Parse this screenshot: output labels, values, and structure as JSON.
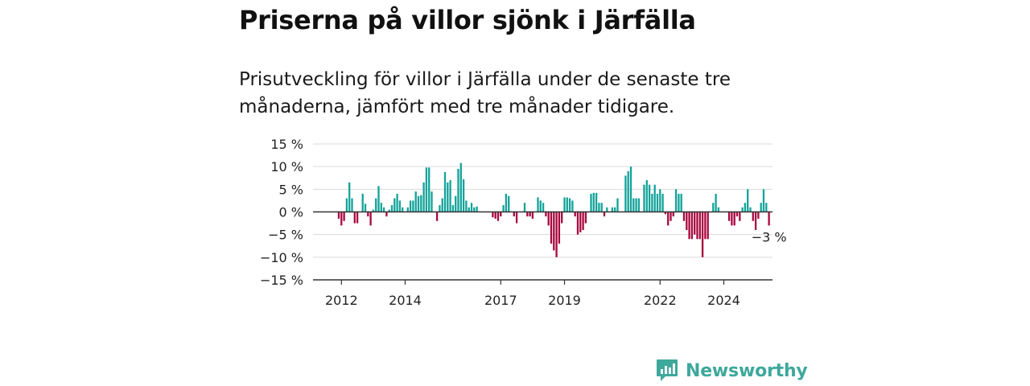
{
  "title": "Priserna på villor sjönk i Järfälla",
  "subtitle": "Prisutveckling för villor i Järfälla under de senaste tre månaderna, jämfört med tre månader tidigare.",
  "logo": {
    "text": "Newsworthy",
    "icon": "newsworthy-chart-bubble-icon"
  },
  "colors": {
    "positive": "#12a39a",
    "negative": "#a8073f",
    "grid": "#d9d9d9",
    "zero_line": "#333333",
    "logo": "#3ea89c"
  },
  "chart_data": {
    "type": "bar",
    "ylim": [
      -15,
      15
    ],
    "y_ticks": [
      {
        "value": 15,
        "label": "15 %"
      },
      {
        "value": 10,
        "label": "10 %"
      },
      {
        "value": 5,
        "label": "5 %"
      },
      {
        "value": 0,
        "label": "0 %"
      },
      {
        "value": -5,
        "label": "−5 %"
      },
      {
        "value": -10,
        "label": "−10 %"
      },
      {
        "value": -15,
        "label": "−15 %"
      }
    ],
    "x_ticks": [
      {
        "label": "2012",
        "index": 1
      },
      {
        "label": "2014",
        "index": 25
      },
      {
        "label": "2017",
        "index": 61
      },
      {
        "label": "2019",
        "index": 85
      },
      {
        "label": "2022",
        "index": 121
      },
      {
        "label": "2024",
        "index": 145
      }
    ],
    "last_label": "−3 %",
    "grid": true,
    "values": [
      -1.5,
      -3,
      -2,
      3,
      6.5,
      3,
      -2.5,
      -2.5,
      0,
      4,
      1.8,
      -1,
      -3,
      0.5,
      3,
      5.7,
      2,
      1,
      -1,
      0.5,
      1.5,
      3,
      4,
      2.5,
      1,
      0,
      1,
      2.5,
      2.5,
      4.5,
      3.5,
      3.7,
      6.5,
      9.8,
      9.8,
      4.5,
      0,
      -2,
      1.5,
      3,
      8.8,
      6.5,
      7,
      1.5,
      3.5,
      9.5,
      10.8,
      7.2,
      2.5,
      1,
      2,
      1,
      1.2,
      0,
      0,
      0,
      0,
      0,
      -1.2,
      -1.5,
      -2,
      -1,
      1.5,
      4,
      3.5,
      0,
      -1,
      -2.5,
      0,
      0,
      2,
      -1,
      -1,
      -1.5,
      0,
      3.2,
      2.5,
      2,
      -1,
      -3,
      -7,
      -8.5,
      -10,
      -7,
      -2.5,
      3.2,
      3.2,
      3,
      2.5,
      -1,
      -5,
      -4.5,
      -4,
      -2.5,
      0,
      4,
      4.2,
      4.2,
      2,
      2,
      -1,
      1,
      0,
      1,
      1,
      3,
      0,
      0,
      8,
      9,
      10,
      3,
      3,
      3,
      0,
      6,
      7,
      6,
      4,
      6,
      4,
      5,
      4,
      -0.5,
      -3,
      -2,
      -1,
      5,
      4,
      4,
      -2,
      -4,
      -6,
      -6,
      -5,
      -6,
      -6,
      -10,
      -6,
      -6,
      0,
      2,
      4,
      1,
      0,
      0,
      0,
      -2,
      -3,
      -3,
      -1,
      -2,
      1,
      2,
      5,
      1,
      -2,
      -4,
      -1.5,
      2,
      5,
      2,
      -3
    ]
  }
}
